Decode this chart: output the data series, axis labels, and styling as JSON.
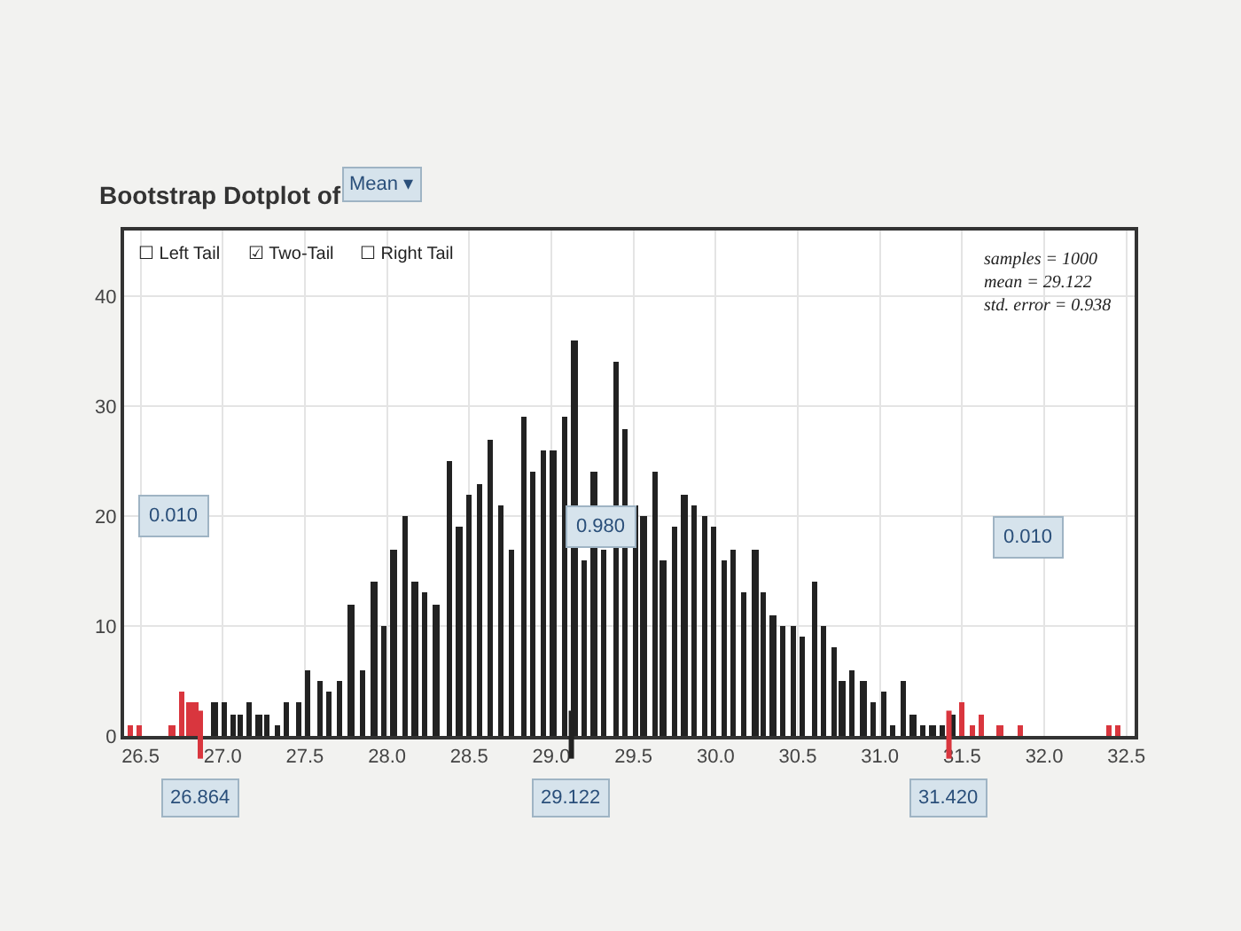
{
  "chart_data": {
    "type": "bar",
    "title": "Bootstrap Dotplot of",
    "x": [
      26.44,
      26.49,
      26.69,
      26.75,
      26.8,
      26.84,
      26.95,
      27.01,
      27.06,
      27.11,
      27.16,
      27.22,
      27.27,
      27.33,
      27.39,
      27.46,
      27.52,
      27.59,
      27.65,
      27.71,
      27.78,
      27.85,
      27.92,
      27.98,
      28.04,
      28.11,
      28.17,
      28.23,
      28.3,
      28.38,
      28.44,
      28.5,
      28.56,
      28.63,
      28.69,
      28.76,
      28.83,
      28.89,
      28.95,
      29.01,
      29.08,
      29.14,
      29.2,
      29.26,
      29.32,
      29.39,
      29.45,
      29.51,
      29.56,
      29.63,
      29.68,
      29.75,
      29.81,
      29.87,
      29.93,
      29.99,
      30.05,
      30.11,
      30.17,
      30.24,
      30.29,
      30.35,
      30.41,
      30.47,
      30.53,
      30.6,
      30.66,
      30.72,
      30.77,
      30.83,
      30.9,
      30.96,
      31.02,
      31.08,
      31.14,
      31.2,
      31.26,
      31.32,
      31.38,
      31.44,
      31.5,
      31.56,
      31.62,
      31.73,
      31.85,
      32.39,
      32.45
    ],
    "values": [
      1,
      1,
      1,
      4,
      3,
      3,
      3,
      3,
      2,
      2,
      3,
      2,
      2,
      1,
      3,
      3,
      6,
      5,
      4,
      5,
      12,
      6,
      14,
      10,
      17,
      20,
      14,
      13,
      12,
      25,
      19,
      22,
      23,
      27,
      21,
      17,
      29,
      24,
      26,
      26,
      29,
      36,
      16,
      24,
      17,
      34,
      28,
      21,
      20,
      24,
      16,
      19,
      22,
      21,
      20,
      19,
      16,
      17,
      13,
      17,
      13,
      11,
      10,
      10,
      9,
      14,
      10,
      8,
      5,
      6,
      5,
      3,
      4,
      1,
      5,
      2,
      1,
      1,
      1,
      2,
      3,
      1,
      2,
      1,
      1,
      1,
      1
    ],
    "colors": [
      "#d9363e",
      "#d9363e",
      "#d9363e",
      "#d9363e",
      "#d9363e",
      "#d9363e",
      "#222222",
      "#222222",
      "#222222",
      "#222222",
      "#222222",
      "#222222",
      "#222222",
      "#222222",
      "#222222",
      "#222222",
      "#222222",
      "#222222",
      "#222222",
      "#222222",
      "#222222",
      "#222222",
      "#222222",
      "#222222",
      "#222222",
      "#222222",
      "#222222",
      "#222222",
      "#222222",
      "#222222",
      "#222222",
      "#222222",
      "#222222",
      "#222222",
      "#222222",
      "#222222",
      "#222222",
      "#222222",
      "#222222",
      "#222222",
      "#222222",
      "#222222",
      "#222222",
      "#222222",
      "#222222",
      "#222222",
      "#222222",
      "#222222",
      "#222222",
      "#222222",
      "#222222",
      "#222222",
      "#222222",
      "#222222",
      "#222222",
      "#222222",
      "#222222",
      "#222222",
      "#222222",
      "#222222",
      "#222222",
      "#222222",
      "#222222",
      "#222222",
      "#222222",
      "#222222",
      "#222222",
      "#222222",
      "#222222",
      "#222222",
      "#222222",
      "#222222",
      "#222222",
      "#222222",
      "#222222",
      "#222222",
      "#222222",
      "#222222",
      "#222222",
      "#222222",
      "#d9363e",
      "#d9363e",
      "#d9363e",
      "#d9363e",
      "#d9363e",
      "#d9363e",
      "#d9363e"
    ],
    "xlim": [
      26.4,
      32.55
    ],
    "xticks": [
      26.5,
      {
        "value": 27,
        "label": "27.0"
      },
      27.5,
      {
        "value": 28,
        "label": "28.0"
      },
      28.5,
      {
        "value": 29,
        "label": "29.0"
      },
      29.5,
      {
        "value": 30,
        "label": "30.0"
      },
      30.5,
      {
        "value": 31,
        "label": "31.0"
      },
      31.5,
      {
        "value": 32,
        "label": "32.0"
      },
      32.5
    ],
    "ylim": [
      0,
      46
    ],
    "yticks": [
      0,
      10,
      20,
      30,
      40
    ],
    "grid": true,
    "ref_lines": [
      {
        "axis": "x",
        "value": 26.864,
        "label": "26.864",
        "color": "#d9363e"
      },
      {
        "axis": "x",
        "value": 29.122,
        "label": "29.122",
        "color": "#222222"
      },
      {
        "axis": "x",
        "value": 31.42,
        "label": "31.420",
        "color": "#d9363e"
      }
    ],
    "annotations": [
      "Mean ▾",
      "☐ Left Tail",
      "☑ Two-Tail",
      "☐ Right Tail",
      "samples = 1000\nmean = 29.122\nstd. error = 0.938",
      {
        "text": "0.010",
        "x": 26.7,
        "y": 20
      },
      {
        "text": "0.980",
        "x": 29.3,
        "y": 19
      },
      {
        "text": "0.010",
        "x": 31.9,
        "y": 18
      }
    ]
  }
}
